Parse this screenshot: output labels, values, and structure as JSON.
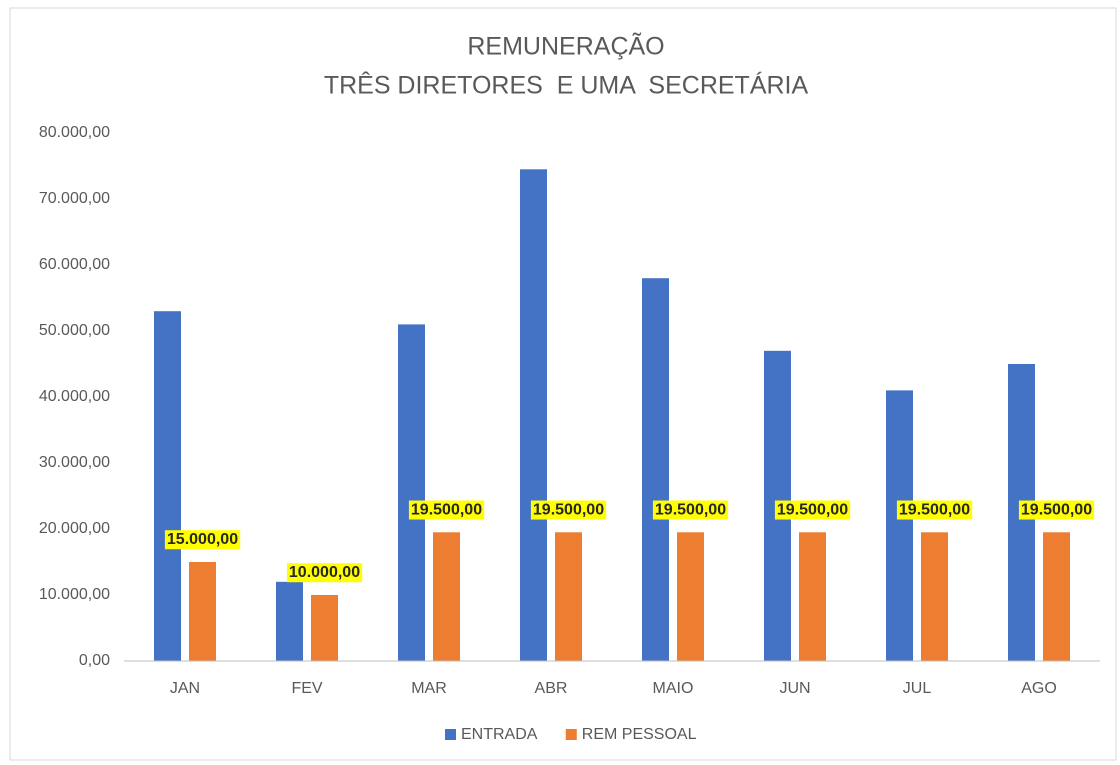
{
  "chart_data": {
    "type": "bar",
    "title": "REMUNERAÇÃO",
    "subtitle": "TRÊS DIRETORES  E UMA  SECRETÁRIA",
    "categories": [
      "JAN",
      "FEV",
      "MAR",
      "ABR",
      "MAIO",
      "JUN",
      "JUL",
      "AGO"
    ],
    "series": [
      {
        "name": "ENTRADA",
        "color": "#4472c4",
        "values": [
          53000,
          12000,
          51000,
          74500,
          58000,
          47000,
          41000,
          45000
        ]
      },
      {
        "name": "REM PESSOAL",
        "color": "#ed7d31",
        "values": [
          15000,
          10000,
          19500,
          19500,
          19500,
          19500,
          19500,
          19500
        ],
        "value_labels": [
          "15.000,00",
          "10.000,00",
          "19.500,00",
          "19.500,00",
          "19.500,00",
          "19.500,00",
          "19.500,00",
          "19.500,00"
        ]
      }
    ],
    "ylim": [
      0,
      80000
    ],
    "yticks": [
      {
        "value": 0,
        "label": "0,00"
      },
      {
        "value": 10000,
        "label": "10.000,00"
      },
      {
        "value": 20000,
        "label": "20.000,00"
      },
      {
        "value": 30000,
        "label": "30.000,00"
      },
      {
        "value": 40000,
        "label": "40.000,00"
      },
      {
        "value": 50000,
        "label": "50.000,00"
      },
      {
        "value": 60000,
        "label": "60.000,00"
      },
      {
        "value": 70000,
        "label": "70.000,00"
      },
      {
        "value": 80000,
        "label": "80.000,00"
      }
    ],
    "legend": "bottom"
  }
}
